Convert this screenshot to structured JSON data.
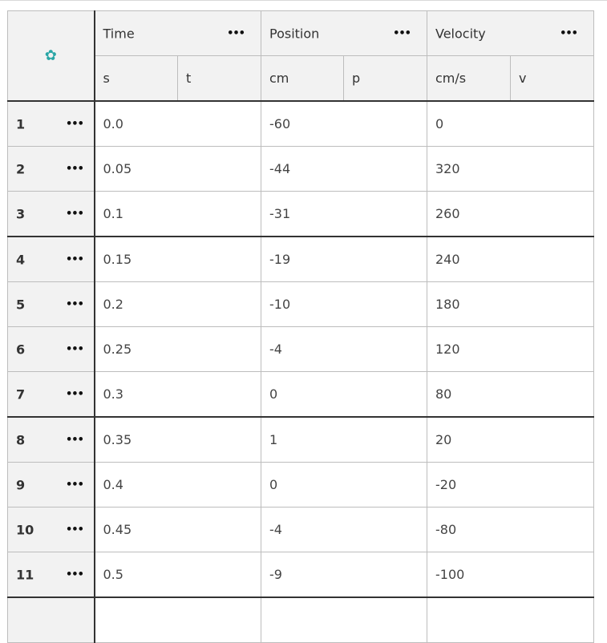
{
  "columns": [
    {
      "name": "Time",
      "unit": "s",
      "var": "t"
    },
    {
      "name": "Position",
      "unit": "cm",
      "var": "p"
    },
    {
      "name": "Velocity",
      "unit": "cm/s",
      "var": "v"
    }
  ],
  "header_menu_icon": "more-dots",
  "settings_icon": "gear",
  "rows": [
    {
      "num": "1",
      "t": "0.0",
      "p": "-60",
      "v": "0"
    },
    {
      "num": "2",
      "t": "0.05",
      "p": "-44",
      "v": "320"
    },
    {
      "num": "3",
      "t": "0.1",
      "p": "-31",
      "v": "260"
    },
    {
      "num": "4",
      "t": "0.15",
      "p": "-19",
      "v": "240"
    },
    {
      "num": "5",
      "t": "0.2",
      "p": "-10",
      "v": "180"
    },
    {
      "num": "6",
      "t": "0.25",
      "p": "-4",
      "v": "120"
    },
    {
      "num": "7",
      "t": "0.3",
      "p": "0",
      "v": "80"
    },
    {
      "num": "8",
      "t": "0.35",
      "p": "1",
      "v": "20"
    },
    {
      "num": "9",
      "t": "0.4",
      "p": "0",
      "v": "-20"
    },
    {
      "num": "10",
      "t": "0.45",
      "p": "-4",
      "v": "-80"
    },
    {
      "num": "11",
      "t": "0.5",
      "p": "-9",
      "v": "-100"
    }
  ],
  "colors": {
    "accent": "#2aa6a6",
    "header_bg": "#f2f2f2"
  }
}
